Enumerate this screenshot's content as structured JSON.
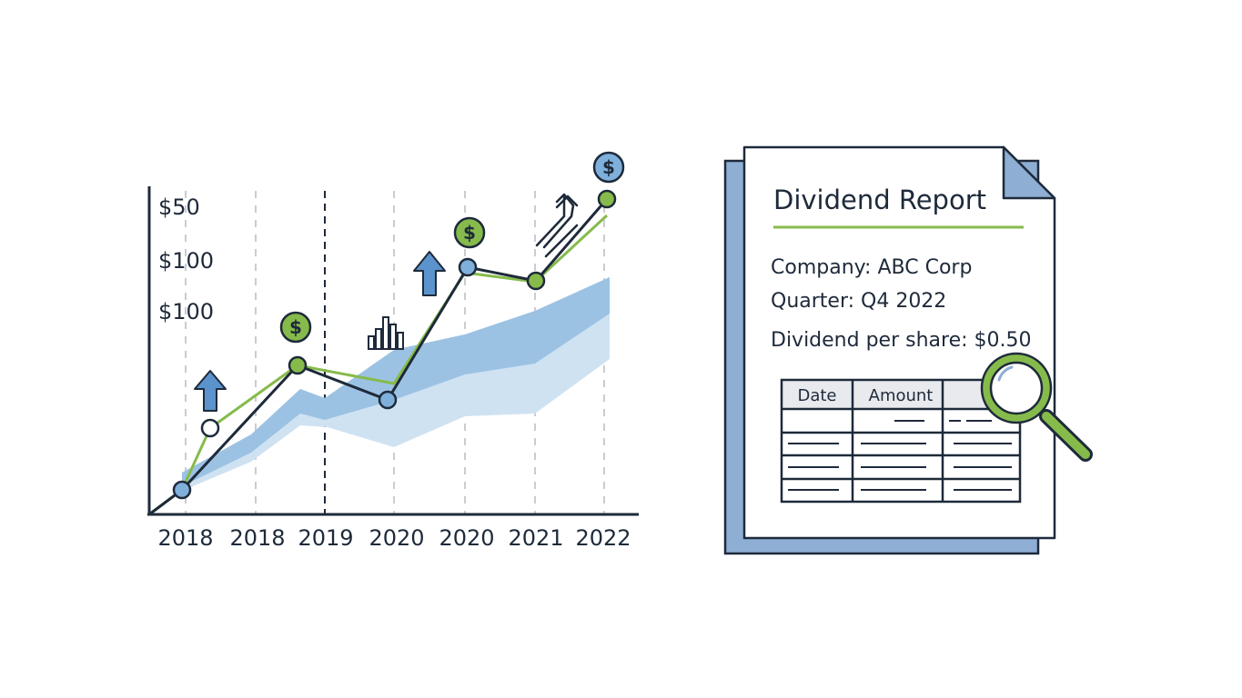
{
  "colors": {
    "ink": "#1e2a3a",
    "green": "#86bb4c",
    "blue_dot": "#7fb0dc",
    "band_dark": "#9cc2e3",
    "band_light": "#cfe2f2",
    "doc_back": "#8eaed4",
    "arrow_blue": "#5b93cc"
  },
  "chart": {
    "y_labels": [
      "$50",
      "$100",
      "$100"
    ],
    "x_labels": [
      "2018",
      "2018",
      "2019",
      "2020",
      "2020",
      "2021",
      "2022"
    ],
    "coin_symbol": "$"
  },
  "chart_data": {
    "type": "line",
    "title": "",
    "categories": [
      "2018",
      "2018",
      "2019",
      "2020",
      "2020",
      "2021",
      "2022"
    ],
    "ytick_labels": [
      "$50",
      "$100",
      "$100"
    ],
    "series": [
      {
        "name": "dark-line",
        "points": [
          [
            0,
            0.06
          ],
          [
            1.6,
            0.45
          ],
          [
            3.6,
            0.35
          ],
          [
            4.6,
            0.77
          ],
          [
            5.6,
            0.72
          ],
          [
            6.5,
            0.96
          ]
        ]
      },
      {
        "name": "green-line",
        "points": [
          [
            0,
            0.06
          ],
          [
            0.3,
            0.26
          ],
          [
            1.6,
            0.45
          ],
          [
            3.3,
            0.39
          ],
          [
            4.6,
            0.74
          ],
          [
            5.6,
            0.72
          ],
          [
            6.5,
            0.92
          ]
        ]
      }
    ],
    "band": {
      "name": "shaded-range",
      "x": [
        0,
        1,
        1.6,
        2,
        3,
        4,
        5,
        6,
        6.5
      ],
      "low": [
        0.02,
        0.12,
        0.23,
        0.25,
        0.2,
        0.28,
        0.31,
        0.38,
        0.49
      ],
      "high": [
        0.1,
        0.24,
        0.36,
        0.34,
        0.37,
        0.47,
        0.45,
        0.6,
        0.7
      ]
    }
  },
  "report": {
    "title": "Dividend Report",
    "company": "Company: ABC Corp",
    "quarter": "Quarter: Q4 2022",
    "dividend": "Dividend per share: $0.50",
    "table": {
      "headers": [
        "Date",
        "Amount",
        ""
      ]
    }
  }
}
